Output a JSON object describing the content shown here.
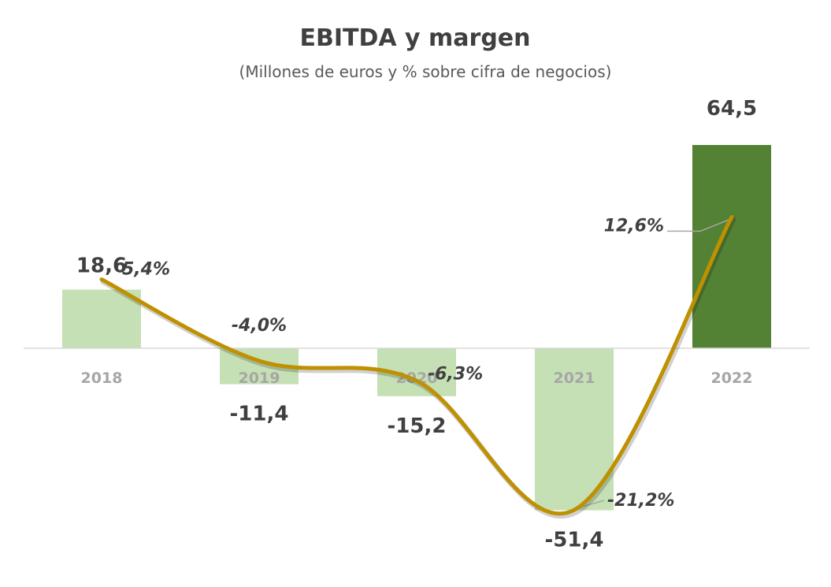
{
  "chart_data": {
    "type": "bar",
    "title": "EBITDA y margen",
    "subtitle": "(Millones de euros y % sobre cifra de negocios)",
    "categories": [
      "2018",
      "2019",
      "2020",
      "2021",
      "2022"
    ],
    "series": [
      {
        "type": "bar",
        "values": [
          18.6,
          -11.4,
          -15.2,
          -51.4,
          64.5
        ],
        "labels": [
          "18,6",
          "-11,4",
          "-15,2",
          "-51,4",
          "64,5"
        ],
        "colors": [
          "#c5e0b4",
          "#c5e0b4",
          "#c5e0b4",
          "#c5e0b4",
          "#548235"
        ]
      },
      {
        "type": "line",
        "values": [
          5.4,
          -4.0,
          -6.3,
          -21.2,
          12.6
        ],
        "labels": [
          "5,4%",
          "-4,0%",
          "-6,3%",
          "-21,2%",
          "12,6%"
        ],
        "color": "#bf9000",
        "smooth": true
      }
    ],
    "axis_line_color": "#d9d9d9"
  }
}
